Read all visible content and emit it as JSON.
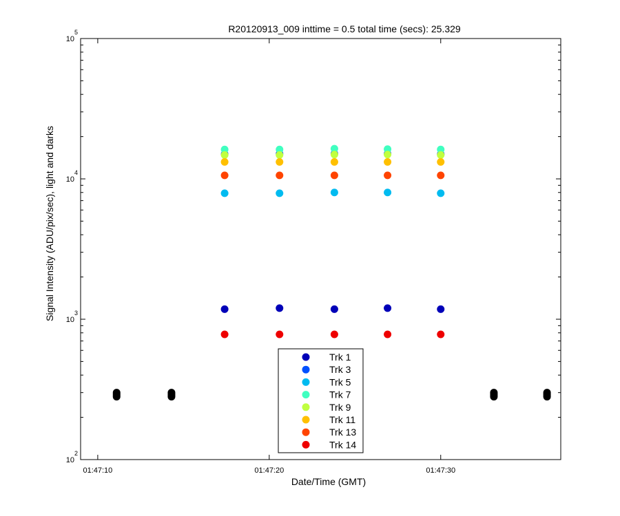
{
  "chart_data": {
    "type": "scatter",
    "title": "R20120913_009 inttime = 0.5 total time (secs): 25.329",
    "xlabel": "Date/Time (GMT)",
    "ylabel": "Signal Intensity (ADU/pix/sec), light and darks",
    "y_scale": "log",
    "ylim": [
      100,
      100000
    ],
    "xlim": [
      "01:47:09.0",
      "01:47:37.0"
    ],
    "x_ticks": [
      {
        "value": "01:47:10",
        "label": "01:47:10"
      },
      {
        "value": "01:47:20",
        "label": "01:47:20"
      },
      {
        "value": "01:47:30",
        "label": "01:47:30"
      }
    ],
    "y_ticks": [
      {
        "value": 100,
        "base": "10",
        "exp": "2"
      },
      {
        "value": 1000,
        "base": "10",
        "exp": "3"
      },
      {
        "value": 10000,
        "base": "10",
        "exp": "4"
      },
      {
        "value": 100000,
        "base": "10",
        "exp": "5"
      }
    ],
    "grid": false,
    "legend_position": "bottom-center",
    "light_times": [
      "01:47:17.4",
      "01:47:20.6",
      "01:47:23.8",
      "01:47:26.9",
      "01:47:30.0"
    ],
    "dark_times": [
      "01:47:11.1",
      "01:47:14.3",
      "01:47:33.1",
      "01:47:36.2"
    ],
    "series": [
      {
        "name": "Trk 1",
        "color": "#0000b8",
        "values": [
          1180,
          1200,
          1180,
          1200,
          1180
        ]
      },
      {
        "name": "Trk 3",
        "color": "#0050ff",
        "values": [
          15000,
          15100,
          15100,
          15100,
          15000
        ]
      },
      {
        "name": "Trk 5",
        "color": "#00bbf0",
        "values": [
          7900,
          7900,
          8000,
          8000,
          7900
        ]
      },
      {
        "name": "Trk 7",
        "color": "#40ffc0",
        "values": [
          16200,
          16200,
          16400,
          16300,
          16200
        ]
      },
      {
        "name": "Trk 9",
        "color": "#c0ff40",
        "values": [
          14800,
          14800,
          14900,
          14900,
          14800
        ]
      },
      {
        "name": "Trk 11",
        "color": "#ffc000",
        "values": [
          13200,
          13200,
          13200,
          13200,
          13200
        ]
      },
      {
        "name": "Trk 13",
        "color": "#ff4400",
        "values": [
          10600,
          10600,
          10600,
          10600,
          10600
        ]
      },
      {
        "name": "Trk 14",
        "color": "#ee0000",
        "values": [
          780,
          780,
          780,
          780,
          780
        ]
      }
    ],
    "darks": {
      "color": "#000000",
      "values": [
        290,
        290,
        290,
        290
      ]
    }
  }
}
